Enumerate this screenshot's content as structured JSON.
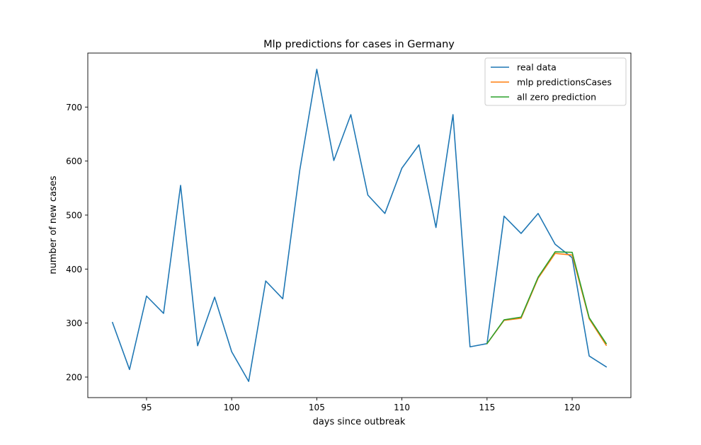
{
  "chart_data": {
    "type": "line",
    "title": "Mlp predictions for cases in  Germany",
    "xlabel": "days since outbreak",
    "ylabel": "number of new cases",
    "xlim": [
      91.55,
      123.45
    ],
    "ylim": [
      162,
      800
    ],
    "xticks": [
      95,
      100,
      105,
      110,
      115,
      120
    ],
    "yticks": [
      200,
      300,
      400,
      500,
      600,
      700
    ],
    "grid": false,
    "legend_position": "top-right",
    "series": [
      {
        "name": "real data",
        "color": "#1f77b4",
        "x": [
          93,
          94,
          95,
          96,
          97,
          98,
          99,
          100,
          101,
          102,
          103,
          104,
          105,
          106,
          107,
          108,
          109,
          110,
          111,
          112,
          113,
          114,
          115,
          116,
          117,
          118,
          119,
          120,
          121,
          122
        ],
        "y": [
          301,
          214,
          350,
          318,
          555,
          258,
          348,
          247,
          192,
          378,
          345,
          583,
          770,
          601,
          686,
          537,
          503,
          587,
          630,
          477,
          686,
          256,
          262,
          498,
          466,
          503,
          446,
          421,
          239,
          219
        ]
      },
      {
        "name": "mlp predictionsCases",
        "color": "#ff7f0e",
        "x": [
          115,
          116,
          117,
          118,
          119,
          120,
          121,
          122
        ],
        "y": [
          262,
          305,
          309,
          383,
          429,
          426,
          308,
          259
        ]
      },
      {
        "name": "all zero prediction",
        "color": "#2ca02c",
        "x": [
          115,
          116,
          117,
          118,
          119,
          120,
          121,
          122
        ],
        "y": [
          262,
          306,
          311,
          385,
          432,
          431,
          310,
          262
        ]
      }
    ]
  }
}
